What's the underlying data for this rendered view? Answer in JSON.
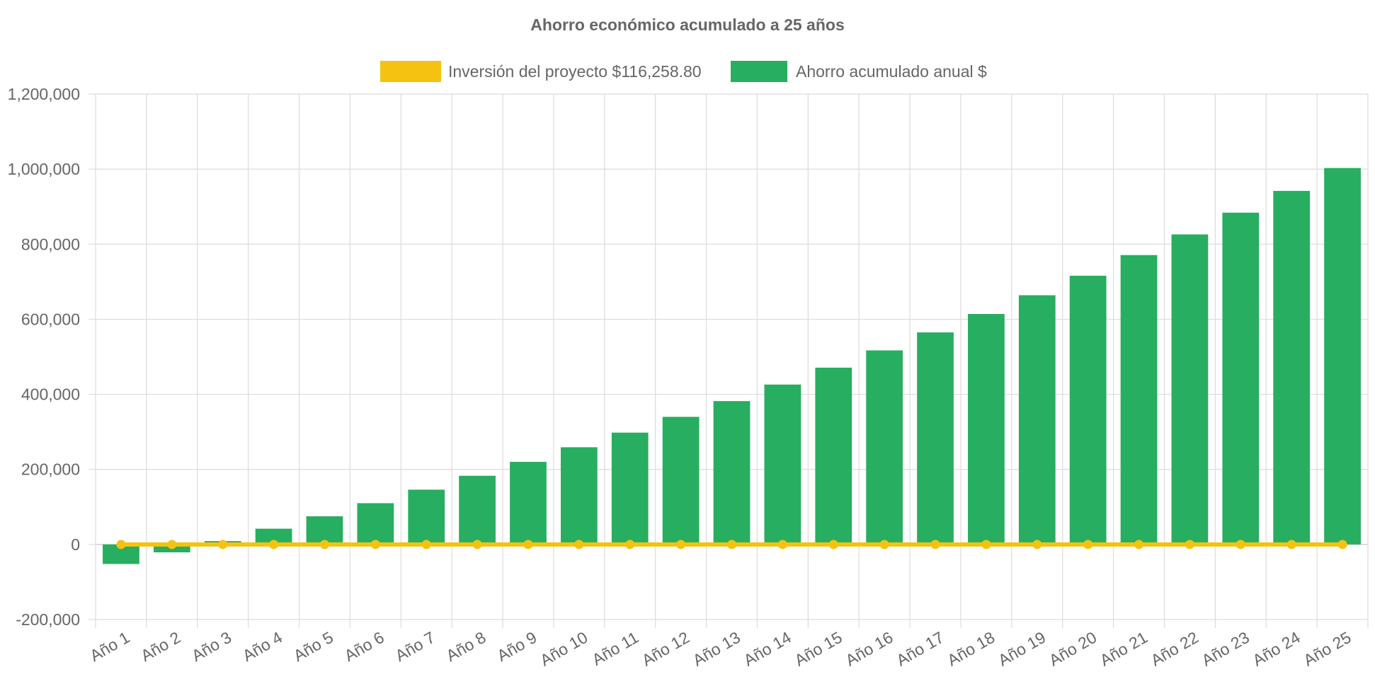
{
  "chart_data": {
    "type": "bar",
    "title": "Ahorro económico acumulado a 25 años",
    "xlabel": "",
    "ylabel": "",
    "legend_position": "top",
    "grid": true,
    "ylim": [
      -200000,
      1200000
    ],
    "y_ticks": [
      1200000,
      1000000,
      800000,
      600000,
      400000,
      200000,
      0,
      -200000
    ],
    "y_tick_labels": [
      "1,200,000",
      "1,000,000",
      "800,000",
      "600,000",
      "400,000",
      "200,000",
      "0",
      "-200,000"
    ],
    "categories": [
      "Año 1",
      "Año 2",
      "Año 3",
      "Año 4",
      "Año 5",
      "Año 6",
      "Año 7",
      "Año 8",
      "Año 9",
      "Año 10",
      "Año 11",
      "Año 12",
      "Año 13",
      "Año 14",
      "Año 15",
      "Año 16",
      "Año 17",
      "Año 18",
      "Año 19",
      "Año 20",
      "Año 21",
      "Año 22",
      "Año 23",
      "Año 24",
      "Año 25"
    ],
    "series": [
      {
        "name": "Inversión del proyecto $116,258.80",
        "type": "line",
        "color": "#f5c211",
        "values": [
          0,
          0,
          0,
          0,
          0,
          0,
          0,
          0,
          0,
          0,
          0,
          0,
          0,
          0,
          0,
          0,
          0,
          0,
          0,
          0,
          0,
          0,
          0,
          0,
          0
        ]
      },
      {
        "name": "Ahorro acumulado anual $",
        "type": "bar",
        "color": "#27ae60",
        "values": [
          -52000,
          -21000,
          9000,
          42000,
          75000,
          110000,
          146000,
          183000,
          220000,
          259000,
          298000,
          340000,
          382000,
          426000,
          471000,
          517000,
          565000,
          614000,
          664000,
          716000,
          771000,
          826000,
          884000,
          942000,
          1003000
        ]
      }
    ]
  }
}
